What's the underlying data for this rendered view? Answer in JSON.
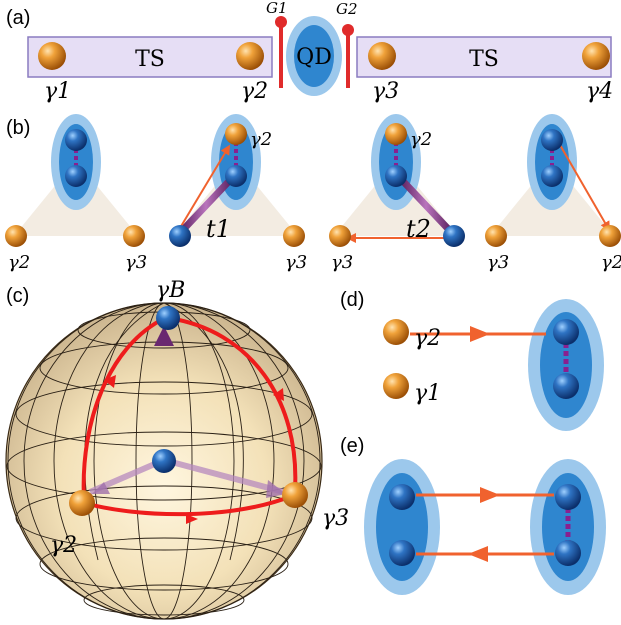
{
  "panels": {
    "a": "(a)",
    "b": "(b)",
    "c": "(c)",
    "d": "(d)",
    "e": "(e)"
  },
  "panel_a": {
    "left_ts": "TS",
    "right_ts": "TS",
    "qd": "QD",
    "gate1": "G1",
    "gate2": "G2",
    "gamma_labels": [
      "γ1",
      "γ2",
      "γ3",
      "γ4"
    ]
  },
  "panel_b": {
    "t1": "t1",
    "t2": "t2",
    "gamma2": "γ2",
    "gamma3": "γ3"
  },
  "panel_c": {
    "gammaB": "γB",
    "gamma2": "γ2",
    "gamma3": "γ3"
  },
  "panel_d": {
    "gamma2": "γ2",
    "gamma1": "γ1"
  },
  "colors": {
    "ts_fill": "#e6def5",
    "ts_stroke": "#8a7cc0",
    "majorana": "#e08a1e",
    "dot_outer": "#9cc8ec",
    "dot_inner": "#2f86cf",
    "electron": "#1f5fa8",
    "arrow": "#f0622e",
    "coupling": "#8a3b8c",
    "gate": "#e02b2b",
    "path": "#ee1c1c"
  }
}
